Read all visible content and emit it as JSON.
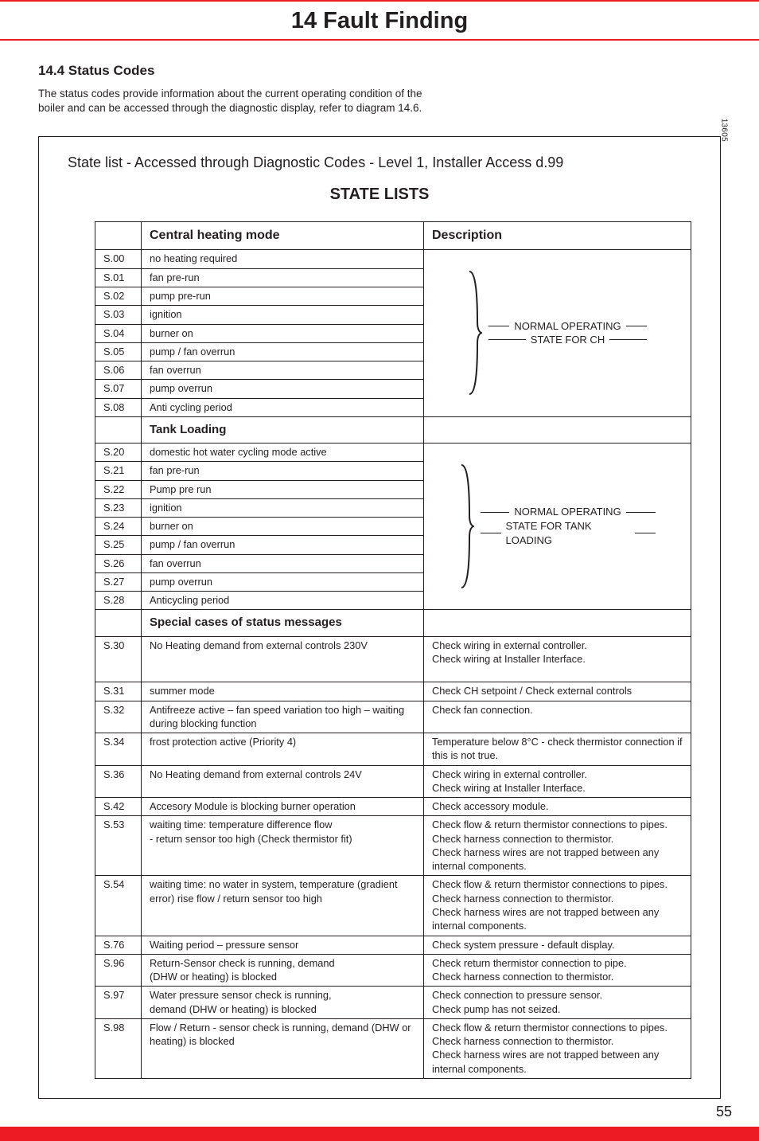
{
  "chapter_title": "14  Fault Finding",
  "section_title": "14.4 Status Codes",
  "intro_text": "The status codes provide information about the current operating condition of the boiler and can be accessed through the diagnostic display, refer to diagram 14.6.",
  "page_ref": "13605",
  "panel_caption": "State list - Accessed through Diagnostic Codes - Level 1, Installer Access d.99",
  "state_lists_title": "STATE LISTS",
  "headers": {
    "mode": "Central heating mode",
    "description": "Description"
  },
  "ch_rows": [
    {
      "code": "S.00",
      "mode": "no heating required"
    },
    {
      "code": "S.01",
      "mode": "fan pre-run"
    },
    {
      "code": "S.02",
      "mode": "pump pre-run"
    },
    {
      "code": "S.03",
      "mode": "ignition"
    },
    {
      "code": "S.04",
      "mode": "burner on"
    },
    {
      "code": "S.05",
      "mode": "pump / fan overrun"
    },
    {
      "code": "S.06",
      "mode": "fan overrun"
    },
    {
      "code": "S.07",
      "mode": "pump overrun"
    },
    {
      "code": "S.08",
      "mode": "Anti cycling period"
    }
  ],
  "ch_brace_label": "NORMAL OPERATING\nSTATE FOR CH",
  "tank_heading": "Tank Loading",
  "tank_rows": [
    {
      "code": "S.20",
      "mode": "domestic hot water cycling mode active"
    },
    {
      "code": "S.21",
      "mode": "fan pre-run"
    },
    {
      "code": "S.22",
      "mode": "Pump pre run"
    },
    {
      "code": "S.23",
      "mode": "ignition"
    },
    {
      "code": "S.24",
      "mode": "burner on"
    },
    {
      "code": "S.25",
      "mode": "pump / fan overrun"
    },
    {
      "code": "S.26",
      "mode": "fan overrun"
    },
    {
      "code": "S.27",
      "mode": "pump overrun"
    },
    {
      "code": "S.28",
      "mode": "Anticycling period"
    }
  ],
  "tank_brace_label": "NORMAL OPERATING\nSTATE FOR TANK LOADING",
  "special_heading": "Special cases of status messages",
  "special_rows": [
    {
      "code": "S.30",
      "mode": "No Heating demand from external controls 230V",
      "desc": "Check wiring in external controller.\nCheck wiring at Installer Interface."
    },
    {
      "code": "S.31",
      "mode": "summer mode",
      "desc": "Check CH setpoint / Check external controls"
    },
    {
      "code": "S.32",
      "mode": "Antifreeze active – fan speed variation too high – waiting during blocking function",
      "desc": "Check fan connection."
    },
    {
      "code": "S.34",
      "mode": "frost protection active (Priority 4)",
      "desc": "Temperature below 8°C - check thermistor connection if this is not true."
    },
    {
      "code": "S.36",
      "mode": "No Heating demand from external controls 24V",
      "desc": "Check wiring in external controller.\nCheck wiring at Installer Interface."
    },
    {
      "code": "S.42",
      "mode": "Accesory Module is blocking burner operation",
      "desc": "Check accessory module."
    },
    {
      "code": "S.53",
      "mode": "waiting time: temperature difference flow\n- return sensor too high (Check thermistor fit)",
      "desc": "Check flow & return thermistor connections to pipes.\nCheck harness connection to thermistor.\nCheck harness wires are not trapped between any internal components."
    },
    {
      "code": "S.54",
      "mode": "waiting time: no water in system, temperature (gradient error) rise flow / return sensor too high",
      "desc": "Check flow & return thermistor connections to pipes.\nCheck harness connection to thermistor.\nCheck harness wires are not trapped between any internal components."
    },
    {
      "code": "S.76",
      "mode": "Waiting period – pressure sensor",
      "desc": "Check system pressure - default display."
    },
    {
      "code": "S.96",
      "mode": "Return-Sensor check is running, demand\n(DHW or heating) is blocked",
      "desc": "Check return thermistor connection to pipe.\nCheck harness connection to thermistor."
    },
    {
      "code": "S.97",
      "mode": "Water pressure sensor check is running,\ndemand (DHW or heating) is blocked",
      "desc": "Check connection to pressure sensor.\nCheck pump has not seized."
    },
    {
      "code": "S.98",
      "mode": "Flow / Return - sensor check is running, demand (DHW or heating) is blocked",
      "desc": "Check flow & return thermistor connections to pipes.\nCheck harness connection to thermistor.\nCheck harness wires are not trapped between any internal components."
    }
  ],
  "diagram_label": "Diagram 14.6",
  "page_number": "55",
  "colors": {
    "accent": "#ec1c24",
    "border": "#231f20",
    "background": "#ffffff"
  }
}
